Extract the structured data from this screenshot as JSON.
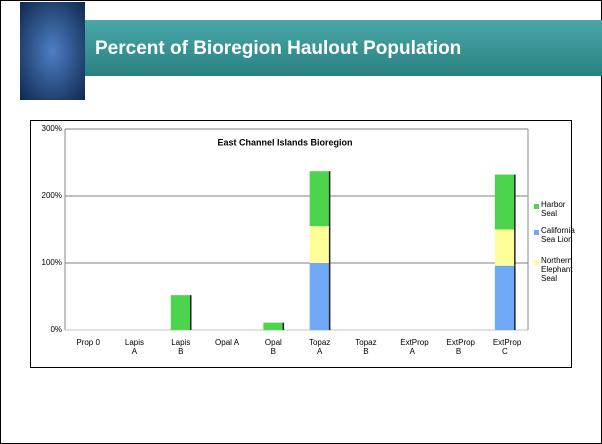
{
  "header": {
    "title": "Percent of Bioregion Haulout Population"
  },
  "chart_data": {
    "type": "stacked_bar",
    "title": "East Channel Islands Bioregion",
    "categories": [
      "Prop 0",
      "Lapis A",
      "Lapis B",
      "Opal A",
      "Opal B",
      "Topaz A",
      "Topaz B",
      "ExtProp A",
      "ExtProp B",
      "ExtProp C"
    ],
    "series": [
      {
        "name": "California Sea Lion",
        "color": "#6fa8f5",
        "values": [
          0,
          0,
          0,
          0,
          0,
          100,
          0,
          0,
          0,
          96
        ]
      },
      {
        "name": "Northern Elephant Seal",
        "color": "#ffff99",
        "values": [
          0,
          0,
          0,
          0,
          0,
          55,
          0,
          0,
          0,
          54
        ]
      },
      {
        "name": "Harbor Seal",
        "color": "#4cd44c",
        "values": [
          0,
          0,
          52,
          0,
          11,
          82,
          0,
          0,
          0,
          82
        ]
      }
    ],
    "ylim": [
      0,
      300
    ],
    "yticks": [
      {
        "value": 0,
        "label": "0%"
      },
      {
        "value": 100,
        "label": "100%"
      },
      {
        "value": 200,
        "label": "200%"
      },
      {
        "value": 300,
        "label": "300%"
      }
    ],
    "grid": true,
    "legend": "right"
  }
}
